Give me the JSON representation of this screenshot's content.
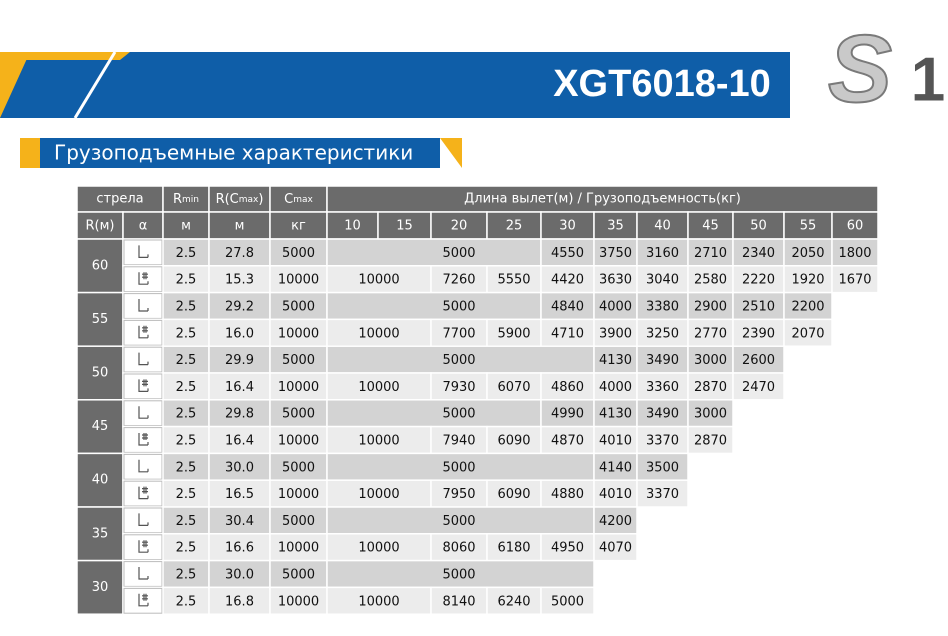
{
  "header": {
    "model": "XGT6018-10",
    "logo_letter": "S",
    "logo_number": "1"
  },
  "section_title": "Грузоподъемные характеристики",
  "table": {
    "head": {
      "boom": "стрела",
      "rmin": {
        "main": "R",
        "sub": "min"
      },
      "rcmax": {
        "main": "R(C",
        "sub": "max",
        "end": ")"
      },
      "cmax": {
        "main": "C",
        "sub": "max"
      },
      "span_title": "Длина вылет(м) / Грузоподъемность(кг)",
      "boom_unit": "R(м)",
      "alpha": "α",
      "rmin_unit": "м",
      "rcmax_unit": "м",
      "cmax_unit": "кг",
      "radii": [
        "10",
        "15",
        "20",
        "25",
        "30",
        "35",
        "40",
        "45",
        "50",
        "55",
        "60"
      ]
    },
    "blocks": [
      {
        "boom": "60",
        "rows": [
          {
            "rmin": "2.5",
            "rcmax": "27.8",
            "cmax": "5000",
            "loads": [
              null,
              null,
              "5000",
              null,
              "4550",
              "3750",
              "3160",
              "2710",
              "2340",
              "2050",
              "1800"
            ]
          },
          {
            "rmin": "2.5",
            "rcmax": "15.3",
            "cmax": "10000",
            "loads": [
              "10000",
              null,
              "7260",
              "5550",
              "4420",
              "3630",
              "3040",
              "2580",
              "2220",
              "1920",
              "1670"
            ]
          }
        ]
      },
      {
        "boom": "55",
        "rows": [
          {
            "rmin": "2.5",
            "rcmax": "29.2",
            "cmax": "5000",
            "loads": [
              null,
              null,
              "5000",
              null,
              "4840",
              "4000",
              "3380",
              "2900",
              "2510",
              "2200",
              null
            ]
          },
          {
            "rmin": "2.5",
            "rcmax": "16.0",
            "cmax": "10000",
            "loads": [
              "10000",
              null,
              "7700",
              "5900",
              "4710",
              "3900",
              "3250",
              "2770",
              "2390",
              "2070",
              null
            ]
          }
        ]
      },
      {
        "boom": "50",
        "rows": [
          {
            "rmin": "2.5",
            "rcmax": "29.9",
            "cmax": "5000",
            "loads": [
              null,
              null,
              "5000",
              null,
              null,
              "4130",
              "3490",
              "3000",
              "2600",
              null,
              null
            ]
          },
          {
            "rmin": "2.5",
            "rcmax": "16.4",
            "cmax": "10000",
            "loads": [
              "10000",
              null,
              "7930",
              "6070",
              "4860",
              "4000",
              "3360",
              "2870",
              "2470",
              null,
              null
            ]
          }
        ]
      },
      {
        "boom": "45",
        "rows": [
          {
            "rmin": "2.5",
            "rcmax": "29.8",
            "cmax": "5000",
            "loads": [
              null,
              null,
              "5000",
              null,
              "4990",
              "4130",
              "3490",
              "3000",
              null,
              null,
              null
            ]
          },
          {
            "rmin": "2.5",
            "rcmax": "16.4",
            "cmax": "10000",
            "loads": [
              "10000",
              null,
              "7940",
              "6090",
              "4870",
              "4010",
              "3370",
              "2870",
              null,
              null,
              null
            ]
          }
        ]
      },
      {
        "boom": "40",
        "rows": [
          {
            "rmin": "2.5",
            "rcmax": "30.0",
            "cmax": "5000",
            "loads": [
              null,
              null,
              "5000",
              null,
              null,
              "4140",
              "3500",
              null,
              null,
              null,
              null
            ]
          },
          {
            "rmin": "2.5",
            "rcmax": "16.5",
            "cmax": "10000",
            "loads": [
              "10000",
              null,
              "7950",
              "6090",
              "4880",
              "4010",
              "3370",
              null,
              null,
              null,
              null
            ]
          }
        ]
      },
      {
        "boom": "35",
        "rows": [
          {
            "rmin": "2.5",
            "rcmax": "30.4",
            "cmax": "5000",
            "loads": [
              null,
              null,
              "5000",
              null,
              null,
              "4200",
              null,
              null,
              null,
              null,
              null
            ]
          },
          {
            "rmin": "2.5",
            "rcmax": "16.6",
            "cmax": "10000",
            "loads": [
              "10000",
              null,
              "8060",
              "6180",
              "4950",
              "4070",
              null,
              null,
              null,
              null,
              null
            ]
          }
        ]
      },
      {
        "boom": "30",
        "rows": [
          {
            "rmin": "2.5",
            "rcmax": "30.0",
            "cmax": "5000",
            "loads": [
              null,
              null,
              "5000",
              null,
              null,
              null,
              null,
              null,
              null,
              null,
              null
            ]
          },
          {
            "rmin": "2.5",
            "rcmax": "16.8",
            "cmax": "10000",
            "loads": [
              "10000",
              null,
              "8140",
              "6240",
              "5000",
              null,
              null,
              null,
              null,
              null,
              null
            ]
          }
        ]
      }
    ]
  }
}
